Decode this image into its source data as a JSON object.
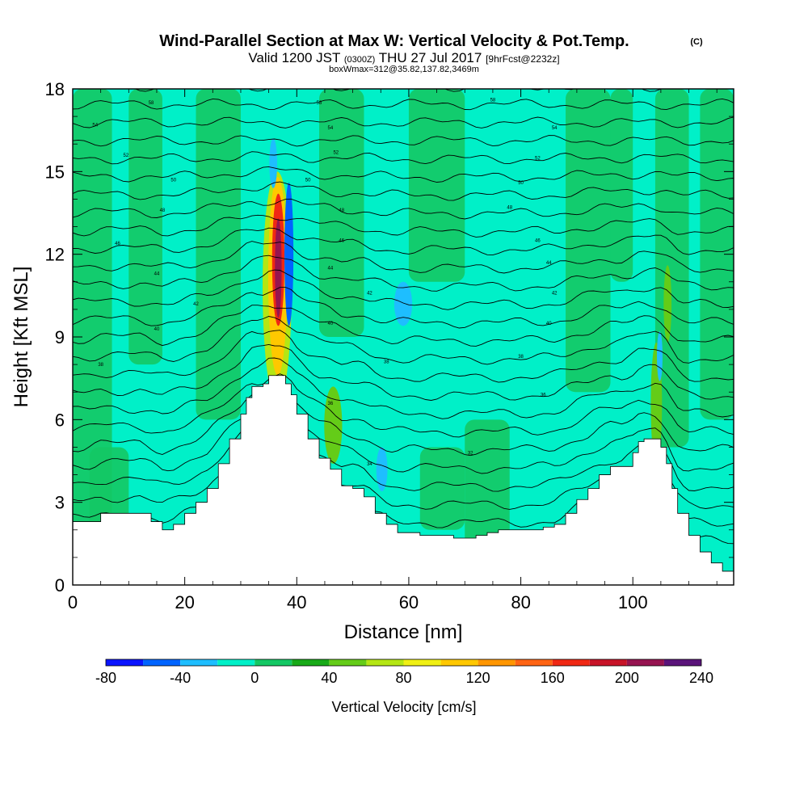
{
  "header": {
    "title": "Wind-Parallel Section at Max W: Vertical Velocity & Pot.Temp.",
    "copyright": "(C)",
    "valid_prefix": "Valid 1200 JST",
    "valid_utc": "(0300Z)",
    "valid_date": "THU 27 Jul 2017",
    "forecast": "[9hrFcst@2232z]",
    "box_info": "boxWmax=312@35.82,137.82,3469m"
  },
  "chart_data": {
    "type": "heatmap",
    "title": "Wind-Parallel Section at Max W: Vertical Velocity & Pot.Temp.",
    "xlabel": "Distance [nm]",
    "ylabel": "Height [Kft MSL]",
    "xlim": [
      0,
      118
    ],
    "ylim": [
      0,
      18
    ],
    "xticks": [
      0,
      20,
      40,
      60,
      80,
      100
    ],
    "yticks": [
      0,
      3,
      6,
      9,
      12,
      15,
      18
    ],
    "grid": false,
    "colorbar": {
      "label": "Vertical Velocity [cm/s]",
      "placement": "bottom",
      "boundaries": [
        -80,
        -60,
        -40,
        -20,
        0,
        20,
        40,
        60,
        80,
        100,
        120,
        140,
        160,
        180,
        200,
        220,
        240
      ],
      "tick_labels": [
        "-80",
        "-40",
        "0",
        "40",
        "80",
        "120",
        "160",
        "200",
        "240"
      ],
      "colors": [
        "#0a14ff",
        "#0064ff",
        "#1ebeff",
        "#00f0c8",
        "#14c864",
        "#18aa18",
        "#64cc18",
        "#b4e614",
        "#f0f014",
        "#ffc800",
        "#ff9600",
        "#ff6414",
        "#f02814",
        "#c81428",
        "#961450",
        "#5a147a"
      ]
    },
    "background_fill_color": "#00f0c8",
    "terrain": {
      "x": [
        0,
        2.5,
        5,
        7.5,
        10,
        12,
        14,
        16,
        18,
        20,
        22,
        24,
        26,
        28,
        30,
        31,
        32,
        33,
        34,
        35,
        36,
        37,
        38,
        39,
        40,
        42,
        44,
        46,
        48,
        50,
        52,
        54,
        56,
        58,
        60,
        62,
        64,
        66,
        68,
        70,
        72,
        74,
        76,
        78,
        80,
        82,
        84,
        86,
        88,
        90,
        92,
        94,
        96,
        98,
        100,
        101,
        102,
        103,
        104,
        105,
        106,
        107,
        108,
        110,
        112,
        114,
        116,
        118
      ],
      "height": [
        2.3,
        2.3,
        2.6,
        2.6,
        2.6,
        2.6,
        2.3,
        2.0,
        2.2,
        2.6,
        3.0,
        3.5,
        4.4,
        5.3,
        6.2,
        6.8,
        7.2,
        7.2,
        7.3,
        7.6,
        7.6,
        7.6,
        7.3,
        6.9,
        6.2,
        5.3,
        4.6,
        4.2,
        3.6,
        3.5,
        3.2,
        2.6,
        2.2,
        1.9,
        1.9,
        1.8,
        1.8,
        1.8,
        1.7,
        1.7,
        1.8,
        1.9,
        2.0,
        2.0,
        2.0,
        2.0,
        2.1,
        2.2,
        2.6,
        3.1,
        3.5,
        4.0,
        4.3,
        4.3,
        4.8,
        5.2,
        5.3,
        5.3,
        5.3,
        5.0,
        4.4,
        3.5,
        2.6,
        1.8,
        1.2,
        0.8,
        0.5,
        0.3
      ]
    },
    "regions": [
      {
        "name": "updraft-core-outer",
        "x": 36.5,
        "height": 10.8,
        "half_width": 2.6,
        "half_height": 4.2,
        "value": 60
      },
      {
        "name": "updraft-core",
        "x": 36.6,
        "height": 11.2,
        "half_width": 1.7,
        "half_height": 3.6,
        "value": 100
      },
      {
        "name": "updraft-core-inner",
        "x": 36.7,
        "height": 11.8,
        "half_width": 1.1,
        "half_height": 2.4,
        "value": 160
      },
      {
        "name": "updraft-core-max",
        "x": 36.7,
        "height": 11.5,
        "half_width": 0.6,
        "half_height": 1.8,
        "value": 200
      },
      {
        "name": "downdraft-east",
        "x": 38.6,
        "height": 12.0,
        "half_width": 0.8,
        "half_height": 2.6,
        "value": -60
      },
      {
        "name": "downdraft-top",
        "x": 35.8,
        "height": 15.3,
        "half_width": 0.7,
        "half_height": 0.9,
        "value": -40
      },
      {
        "name": "updraft-secondary",
        "x": 46.5,
        "height": 5.8,
        "half_width": 1.6,
        "half_height": 1.4,
        "value": 40
      },
      {
        "name": "downdraft-58",
        "x": 59.0,
        "height": 10.2,
        "half_width": 1.6,
        "half_height": 0.8,
        "value": -30
      },
      {
        "name": "downdraft-55",
        "x": 55.2,
        "height": 4.2,
        "half_width": 1.0,
        "half_height": 0.8,
        "value": -30
      },
      {
        "name": "updraft-104",
        "x": 104.2,
        "height": 6.6,
        "half_width": 1.0,
        "half_height": 2.2,
        "value": 40
      },
      {
        "name": "updraft-106",
        "x": 106.2,
        "height": 10.2,
        "half_width": 0.7,
        "half_height": 1.4,
        "value": 40
      },
      {
        "name": "downdraft-105",
        "x": 104.8,
        "height": 8.3,
        "half_width": 0.5,
        "half_height": 0.9,
        "value": -40
      }
    ],
    "isentropes": {
      "labels": [
        {
          "text": "58",
          "x": 14,
          "height": 17.5
        },
        {
          "text": "58",
          "x": 44,
          "height": 17.5
        },
        {
          "text": "58",
          "x": 75,
          "height": 17.6
        },
        {
          "text": "54",
          "x": 4,
          "height": 16.7
        },
        {
          "text": "54",
          "x": 46,
          "height": 16.6
        },
        {
          "text": "54",
          "x": 86,
          "height": 16.6
        },
        {
          "text": "52",
          "x": 9.5,
          "height": 15.6
        },
        {
          "text": "52",
          "x": 47,
          "height": 15.7
        },
        {
          "text": "52",
          "x": 83,
          "height": 15.5
        },
        {
          "text": "50",
          "x": 18,
          "height": 14.7
        },
        {
          "text": "50",
          "x": 42,
          "height": 14.7
        },
        {
          "text": "50",
          "x": 80,
          "height": 14.6
        },
        {
          "text": "48",
          "x": 16,
          "height": 13.6
        },
        {
          "text": "48",
          "x": 48,
          "height": 13.6
        },
        {
          "text": "48",
          "x": 78,
          "height": 13.7
        },
        {
          "text": "46",
          "x": 8,
          "height": 12.4
        },
        {
          "text": "46",
          "x": 48,
          "height": 12.5
        },
        {
          "text": "46",
          "x": 83,
          "height": 12.5
        },
        {
          "text": "44",
          "x": 15,
          "height": 11.3
        },
        {
          "text": "44",
          "x": 46,
          "height": 11.5
        },
        {
          "text": "44",
          "x": 85,
          "height": 11.7
        },
        {
          "text": "42",
          "x": 22,
          "height": 10.2
        },
        {
          "text": "42",
          "x": 53,
          "height": 10.6
        },
        {
          "text": "42",
          "x": 86,
          "height": 10.6
        },
        {
          "text": "40",
          "x": 15,
          "height": 9.3
        },
        {
          "text": "40",
          "x": 46,
          "height": 9.5
        },
        {
          "text": "40",
          "x": 85,
          "height": 9.5
        },
        {
          "text": "38",
          "x": 5,
          "height": 8.0
        },
        {
          "text": "38",
          "x": 56,
          "height": 8.1
        },
        {
          "text": "38",
          "x": 80,
          "height": 8.3
        },
        {
          "text": "36",
          "x": 46,
          "height": 6.6
        },
        {
          "text": "36",
          "x": 84,
          "height": 6.9
        },
        {
          "text": "34",
          "x": 53,
          "height": 4.4
        },
        {
          "text": "32",
          "x": 71,
          "height": 4.8
        }
      ]
    }
  }
}
